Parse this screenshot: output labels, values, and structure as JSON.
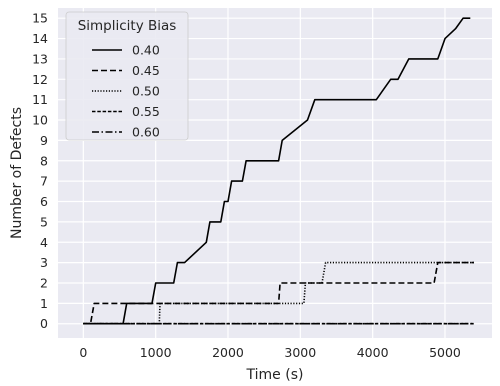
{
  "chart_data": {
    "type": "line",
    "title": "",
    "xlabel": "Time (s)",
    "ylabel": "Number of Defects",
    "xlim": [
      -350,
      5650
    ],
    "ylim": [
      -0.7,
      15.5
    ],
    "xticks": [
      0,
      1000,
      2000,
      3000,
      4000,
      5000
    ],
    "yticks": [
      0,
      1,
      2,
      3,
      4,
      5,
      6,
      7,
      8,
      9,
      10,
      11,
      12,
      13,
      14,
      15
    ],
    "grid": true,
    "background": "#eaeaf2",
    "line_color": "#000000",
    "legend": {
      "title": "Simplicity Bias",
      "position": "top-left"
    },
    "series": [
      {
        "name": "0.40",
        "style": "solid",
        "x": [
          0,
          550,
          600,
          950,
          1000,
          1050,
          1250,
          1300,
          1400,
          1700,
          1750,
          1900,
          1950,
          2000,
          2050,
          2200,
          2250,
          2550,
          2700,
          2750,
          3100,
          3200,
          3300,
          3400,
          4050,
          4250,
          4300,
          4350,
          4500,
          4700,
          4900,
          5000,
          5150,
          5250,
          5350
        ],
        "y": [
          0,
          0,
          1,
          1,
          2,
          2,
          2,
          3,
          3,
          4,
          5,
          5,
          6,
          6,
          7,
          7,
          8,
          8,
          8,
          9,
          10,
          11,
          11,
          11,
          11,
          12,
          12,
          12,
          13,
          13,
          13,
          14,
          14.5,
          15,
          15
        ]
      },
      {
        "name": "0.45",
        "style": "dashed",
        "x": [
          0,
          100,
          150,
          2700,
          2720,
          2800,
          3000,
          3050,
          3200,
          4850,
          4900,
          5400
        ],
        "y": [
          0,
          0,
          1,
          1,
          2,
          2,
          2,
          2,
          2,
          2,
          3,
          3
        ]
      },
      {
        "name": "0.50",
        "style": "dotted",
        "x": [
          0,
          1050,
          1060,
          3050,
          3070,
          3300,
          3350,
          5400
        ],
        "y": [
          0,
          0,
          1,
          1,
          2,
          2,
          3,
          3
        ]
      },
      {
        "name": "0.55",
        "style": "dashdense",
        "x": [
          0,
          5400
        ],
        "y": [
          0,
          0
        ]
      },
      {
        "name": "0.60",
        "style": "dashdot",
        "x": [
          0,
          5400
        ],
        "y": [
          0,
          0
        ]
      }
    ]
  }
}
